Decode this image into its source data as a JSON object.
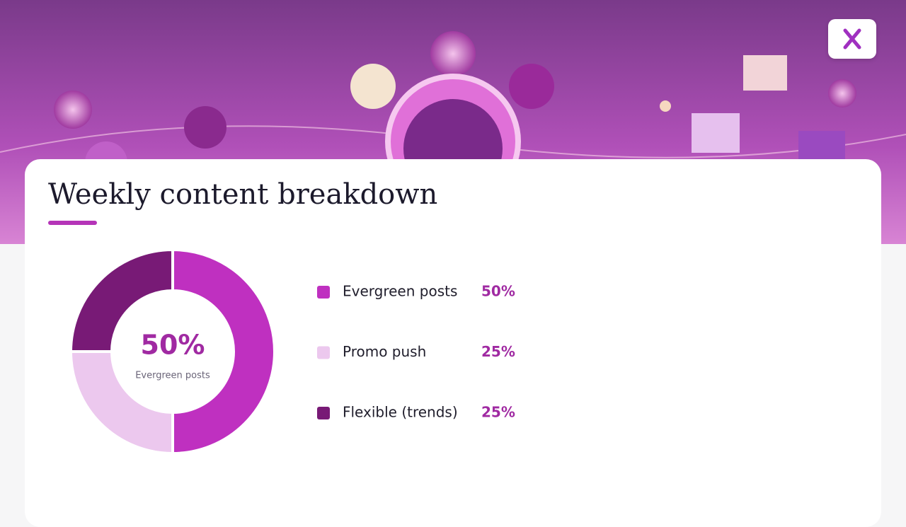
{
  "chart_data": {
    "type": "pie",
    "title": "Weekly content breakdown",
    "categories": [
      "Evergreen posts",
      "Promo push",
      "Flexible (trends)"
    ],
    "values": [
      50,
      25,
      25
    ],
    "value_labels": [
      "50%",
      "25%",
      "25%"
    ],
    "colors": [
      "#bf30c0",
      "#ecc8ee",
      "#781a76"
    ]
  }
}
